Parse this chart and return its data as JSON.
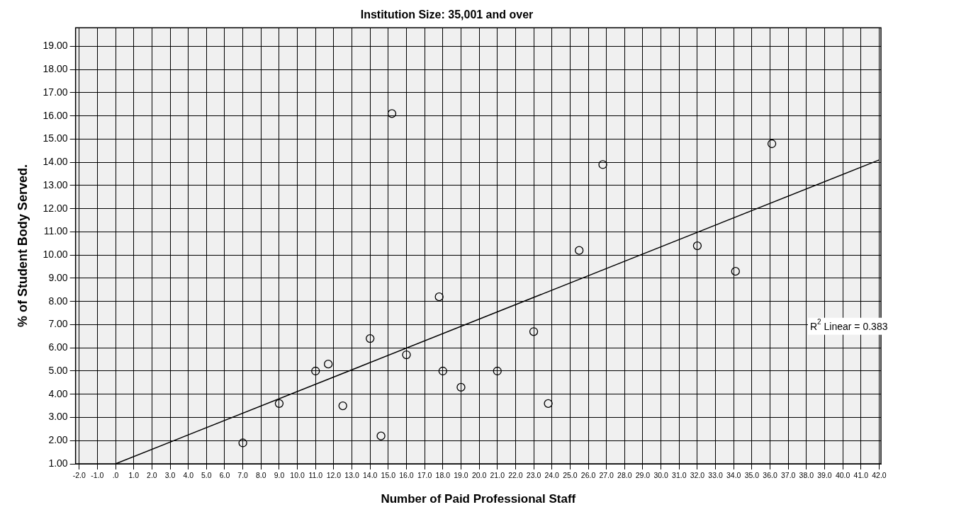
{
  "chart_data": {
    "type": "scatter",
    "title": "Institution Size: 35,001 and over",
    "xlabel": "Number of Paid Professional Staff",
    "ylabel": "% of Student Body Served.",
    "annotations": [
      "R$^{2}$ Linear = 0.383"
    ],
    "xlim": [
      -2.2,
      42.1
    ],
    "ylim": [
      1,
      19.8
    ],
    "xticks": [
      {
        "value": -2,
        "label": "-2.0"
      },
      {
        "value": -1,
        "label": "-1.0"
      },
      {
        "value": 0,
        "label": ".0"
      },
      {
        "value": 1,
        "label": "1.0"
      },
      {
        "value": 2,
        "label": "2.0"
      },
      {
        "value": 3,
        "label": "3.0"
      },
      {
        "value": 4,
        "label": "4.0"
      },
      {
        "value": 5,
        "label": "5.0"
      },
      {
        "value": 6,
        "label": "6.0"
      },
      {
        "value": 7,
        "label": "7.0"
      },
      {
        "value": 8,
        "label": "8.0"
      },
      {
        "value": 9,
        "label": "9.0"
      },
      {
        "value": 10,
        "label": "10.0"
      },
      {
        "value": 11,
        "label": "11.0"
      },
      {
        "value": 12,
        "label": "12.0"
      },
      {
        "value": 13,
        "label": "13.0"
      },
      {
        "value": 14,
        "label": "14.0"
      },
      {
        "value": 15,
        "label": "15.0"
      },
      {
        "value": 16,
        "label": "16.0"
      },
      {
        "value": 17,
        "label": "17.0"
      },
      {
        "value": 18,
        "label": "18.0"
      },
      {
        "value": 19,
        "label": "19.0"
      },
      {
        "value": 20,
        "label": "20.0"
      },
      {
        "value": 21,
        "label": "21.0"
      },
      {
        "value": 22,
        "label": "22.0"
      },
      {
        "value": 23,
        "label": "23.0"
      },
      {
        "value": 24,
        "label": "24.0"
      },
      {
        "value": 25,
        "label": "25.0"
      },
      {
        "value": 26,
        "label": "26.0"
      },
      {
        "value": 27,
        "label": "27.0"
      },
      {
        "value": 28,
        "label": "28.0"
      },
      {
        "value": 29,
        "label": "29.0"
      },
      {
        "value": 30,
        "label": "30.0"
      },
      {
        "value": 31,
        "label": "31.0"
      },
      {
        "value": 32,
        "label": "32.0"
      },
      {
        "value": 33,
        "label": "33.0"
      },
      {
        "value": 34,
        "label": "34.0"
      },
      {
        "value": 35,
        "label": "35.0"
      },
      {
        "value": 36,
        "label": "36.0"
      },
      {
        "value": 37,
        "label": "37.0"
      },
      {
        "value": 38,
        "label": "38.0"
      },
      {
        "value": 39,
        "label": "39.0"
      },
      {
        "value": 40,
        "label": "40.0"
      },
      {
        "value": 41,
        "label": "41.0"
      },
      {
        "value": 42,
        "label": "42.0"
      }
    ],
    "yticks": [
      {
        "value": 1,
        "label": "1.00"
      },
      {
        "value": 2,
        "label": "2.00"
      },
      {
        "value": 3,
        "label": "3.00"
      },
      {
        "value": 4,
        "label": "4.00"
      },
      {
        "value": 5,
        "label": "5.00"
      },
      {
        "value": 6,
        "label": "6.00"
      },
      {
        "value": 7,
        "label": "7.00"
      },
      {
        "value": 8,
        "label": "8.00"
      },
      {
        "value": 9,
        "label": "9.00"
      },
      {
        "value": 10,
        "label": "10.00"
      },
      {
        "value": 11,
        "label": "11.00"
      },
      {
        "value": 12,
        "label": "12.00"
      },
      {
        "value": 13,
        "label": "13.00"
      },
      {
        "value": 14,
        "label": "14.00"
      },
      {
        "value": 15,
        "label": "15.00"
      },
      {
        "value": 16,
        "label": "16.00"
      },
      {
        "value": 17,
        "label": "17.00"
      },
      {
        "value": 18,
        "label": "18.00"
      },
      {
        "value": 19,
        "label": "19.00"
      }
    ],
    "grid": true,
    "legend": false,
    "series": [
      {
        "type": "scatter",
        "color": "#000000",
        "marker": "circle",
        "x": [
          7.0,
          9.0,
          11.0,
          11.7,
          12.5,
          14.0,
          14.6,
          15.2,
          16.0,
          17.8,
          18.0,
          19.0,
          21.0,
          23.0,
          23.8,
          25.5,
          26.8,
          32.0,
          34.1,
          36.1
        ],
        "values": [
          1.9,
          3.6,
          5.0,
          5.3,
          3.5,
          6.4,
          2.2,
          16.1,
          5.7,
          8.2,
          5.0,
          4.3,
          5.0,
          6.7,
          3.6,
          10.2,
          13.9,
          10.4,
          9.3,
          14.8
        ]
      },
      {
        "type": "line",
        "color": "#000000",
        "marker": "none",
        "line_style": "solid",
        "x": [
          0,
          42
        ],
        "values": [
          1.0,
          14.1
        ]
      }
    ]
  }
}
